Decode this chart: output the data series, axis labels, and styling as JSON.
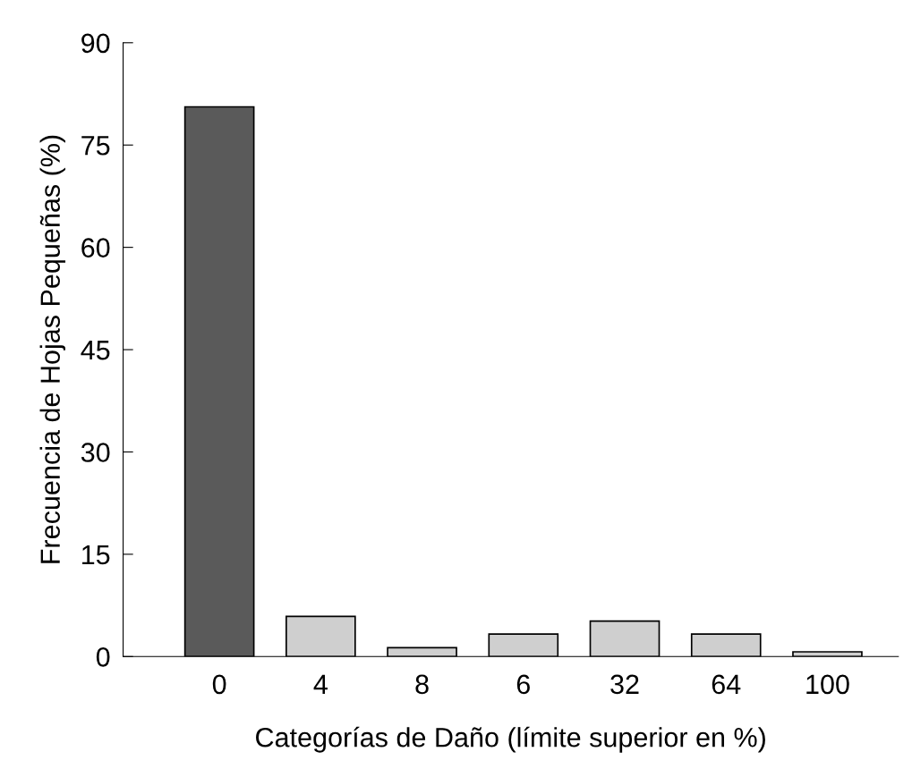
{
  "chart_data": {
    "type": "bar",
    "xlabel": "Categorías de Daño (límite superior en %)",
    "ylabel": "Frecuencia de Hojas Pequeñas (%)",
    "categories": [
      "0",
      "4",
      "8",
      "6",
      "32",
      "64",
      "100"
    ],
    "values": [
      80.6,
      5.9,
      1.3,
      3.3,
      5.2,
      3.3,
      0.7
    ],
    "colors": [
      "#5a5a5a",
      "#cfcfcf",
      "#cfcfcf",
      "#cfcfcf",
      "#cfcfcf",
      "#cfcfcf",
      "#cfcfcf"
    ],
    "ylim": [
      0,
      90
    ],
    "yticks": [
      0,
      15,
      30,
      45,
      60,
      75,
      90
    ],
    "grid": false,
    "legend": false
  }
}
